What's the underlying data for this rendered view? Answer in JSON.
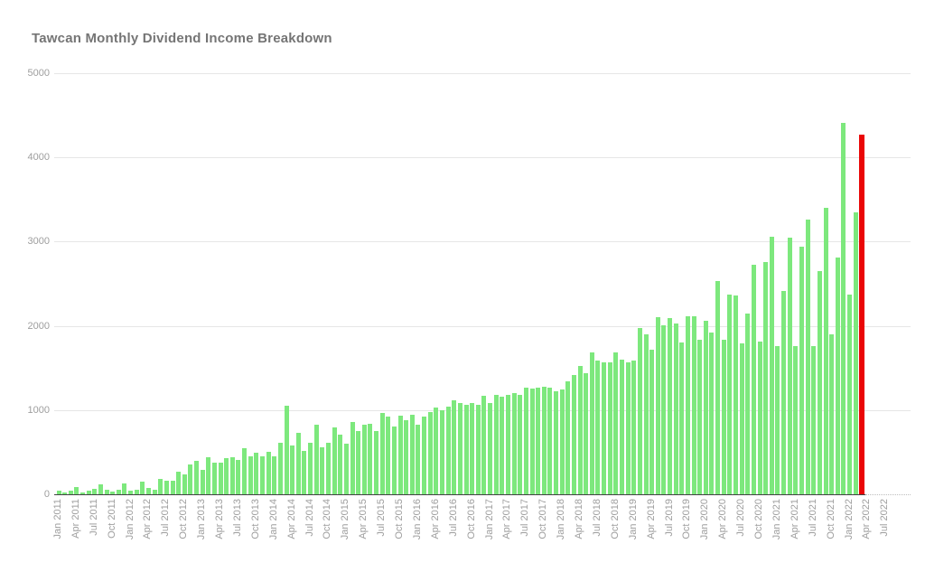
{
  "title": "Tawcan Monthly Dividend Income Breakdown",
  "colors": {
    "bar_green": "#7de87d",
    "bar_red": "#ea0606",
    "gridline": "#e6e6e6",
    "axis_text": "#9e9e9e",
    "title_text": "#757575",
    "baseline": "#424242",
    "background": "#ffffff"
  },
  "chart_data": {
    "type": "bar",
    "title": "Tawcan Monthly Dividend Income Breakdown",
    "xlabel": "",
    "ylabel": "",
    "ylim": [
      0,
      5000
    ],
    "grid": true,
    "legend_position": "none",
    "y_tick_labels": [
      "0",
      "1000",
      "2000",
      "3000",
      "4000",
      "5000"
    ],
    "y_ticks": [
      0,
      1000,
      2000,
      3000,
      4000,
      5000
    ],
    "x_tick_labels": [
      "Jan 2011",
      "Apr 2011",
      "Jul 2011",
      "Oct 2011",
      "Jan 2012",
      "Apr 2012",
      "Jul 2012",
      "Oct 2012",
      "Jan 2013",
      "Apr 2013",
      "Jul 2013",
      "Oct 2013",
      "Jan 2014",
      "Apr 2014",
      "Jul 2014",
      "Oct 2014",
      "Jan 2015",
      "Apr 2015",
      "Jul 2015",
      "Oct 2015",
      "Jan 2016",
      "Apr 2016",
      "Jul 2016",
      "Oct 2016",
      "Jan 2017",
      "Apr 2017",
      "Jul 2017",
      "Oct 2017",
      "Jan 2018",
      "Apr 2018",
      "Jul 2018",
      "Oct 2018",
      "Jan 2019",
      "Apr 2019",
      "Jul 2019",
      "Oct 2019",
      "Jan 2020",
      "Apr 2020",
      "Jul 2020",
      "Oct 2020",
      "Jan 2021",
      "Apr 2021",
      "Jul 2021",
      "Oct 2021",
      "Jan 2022",
      "Apr 2022",
      "Jul 2022"
    ],
    "x": [
      "Jan 2011",
      "Feb 2011",
      "Mar 2011",
      "Apr 2011",
      "May 2011",
      "Jun 2011",
      "Jul 2011",
      "Aug 2011",
      "Sep 2011",
      "Oct 2011",
      "Nov 2011",
      "Dec 2011",
      "Jan 2012",
      "Feb 2012",
      "Mar 2012",
      "Apr 2012",
      "May 2012",
      "Jun 2012",
      "Jul 2012",
      "Aug 2012",
      "Sep 2012",
      "Oct 2012",
      "Nov 2012",
      "Dec 2012",
      "Jan 2013",
      "Feb 2013",
      "Mar 2013",
      "Apr 2013",
      "May 2013",
      "Jun 2013",
      "Jul 2013",
      "Aug 2013",
      "Sep 2013",
      "Oct 2013",
      "Nov 2013",
      "Dec 2013",
      "Jan 2014",
      "Feb 2014",
      "Mar 2014",
      "Apr 2014",
      "May 2014",
      "Jun 2014",
      "Jul 2014",
      "Aug 2014",
      "Sep 2014",
      "Oct 2014",
      "Nov 2014",
      "Dec 2014",
      "Jan 2015",
      "Feb 2015",
      "Mar 2015",
      "Apr 2015",
      "May 2015",
      "Jun 2015",
      "Jul 2015",
      "Aug 2015",
      "Sep 2015",
      "Oct 2015",
      "Nov 2015",
      "Dec 2015",
      "Jan 2016",
      "Feb 2016",
      "Mar 2016",
      "Apr 2016",
      "May 2016",
      "Jun 2016",
      "Jul 2016",
      "Aug 2016",
      "Sep 2016",
      "Oct 2016",
      "Nov 2016",
      "Dec 2016",
      "Jan 2017",
      "Feb 2017",
      "Mar 2017",
      "Apr 2017",
      "May 2017",
      "Jun 2017",
      "Jul 2017",
      "Aug 2017",
      "Sep 2017",
      "Oct 2017",
      "Nov 2017",
      "Dec 2017",
      "Jan 2018",
      "Feb 2018",
      "Mar 2018",
      "Apr 2018",
      "May 2018",
      "Jun 2018",
      "Jul 2018",
      "Aug 2018",
      "Sep 2018",
      "Oct 2018",
      "Nov 2018",
      "Dec 2018",
      "Jan 2019",
      "Feb 2019",
      "Mar 2019",
      "Apr 2019",
      "May 2019",
      "Jun 2019",
      "Jul 2019",
      "Aug 2019",
      "Sep 2019",
      "Oct 2019",
      "Nov 2019",
      "Dec 2019",
      "Jan 2020",
      "Feb 2020",
      "Mar 2020",
      "Apr 2020",
      "May 2020",
      "Jun 2020",
      "Jul 2020",
      "Aug 2020",
      "Sep 2020",
      "Oct 2020",
      "Nov 2020",
      "Dec 2020",
      "Jan 2021",
      "Feb 2021",
      "Mar 2021",
      "Apr 2021",
      "May 2021",
      "Jun 2021",
      "Jul 2021",
      "Aug 2021",
      "Sep 2021",
      "Oct 2021",
      "Nov 2021",
      "Dec 2021",
      "Jan 2022",
      "Feb 2022",
      "Mar 2022"
    ],
    "values": [
      40,
      20,
      45,
      90,
      20,
      45,
      65,
      120,
      55,
      35,
      55,
      130,
      40,
      55,
      145,
      80,
      55,
      180,
      160,
      160,
      270,
      235,
      355,
      400,
      290,
      440,
      380,
      380,
      430,
      440,
      405,
      550,
      455,
      490,
      455,
      505,
      455,
      615,
      1055,
      580,
      730,
      520,
      610,
      825,
      560,
      615,
      795,
      705,
      600,
      860,
      750,
      825,
      840,
      750,
      970,
      920,
      800,
      930,
      880,
      945,
      830,
      920,
      980,
      1025,
      1000,
      1045,
      1120,
      1080,
      1060,
      1080,
      1060,
      1170,
      1085,
      1185,
      1160,
      1185,
      1205,
      1180,
      1265,
      1260,
      1265,
      1275,
      1265,
      1220,
      1250,
      1340,
      1420,
      1525,
      1435,
      1680,
      1590,
      1570,
      1565,
      1680,
      1600,
      1565,
      1590,
      1975,
      1900,
      1720,
      2100,
      2005,
      2095,
      2030,
      1800,
      2110,
      2110,
      1840,
      2065,
      1920,
      2530,
      1830,
      2375,
      2360,
      1790,
      2145,
      2720,
      1815,
      2755,
      3055,
      1765,
      2410,
      3045,
      1765,
      2935,
      3260,
      1755,
      2650,
      3400,
      1900,
      2815,
      4415,
      2370,
      3345,
      4270
    ],
    "highlight": {
      "month": "Mar 2022",
      "index": 134,
      "value": 4270,
      "color": "#ea0606",
      "note": "last bar drawn in red"
    }
  }
}
